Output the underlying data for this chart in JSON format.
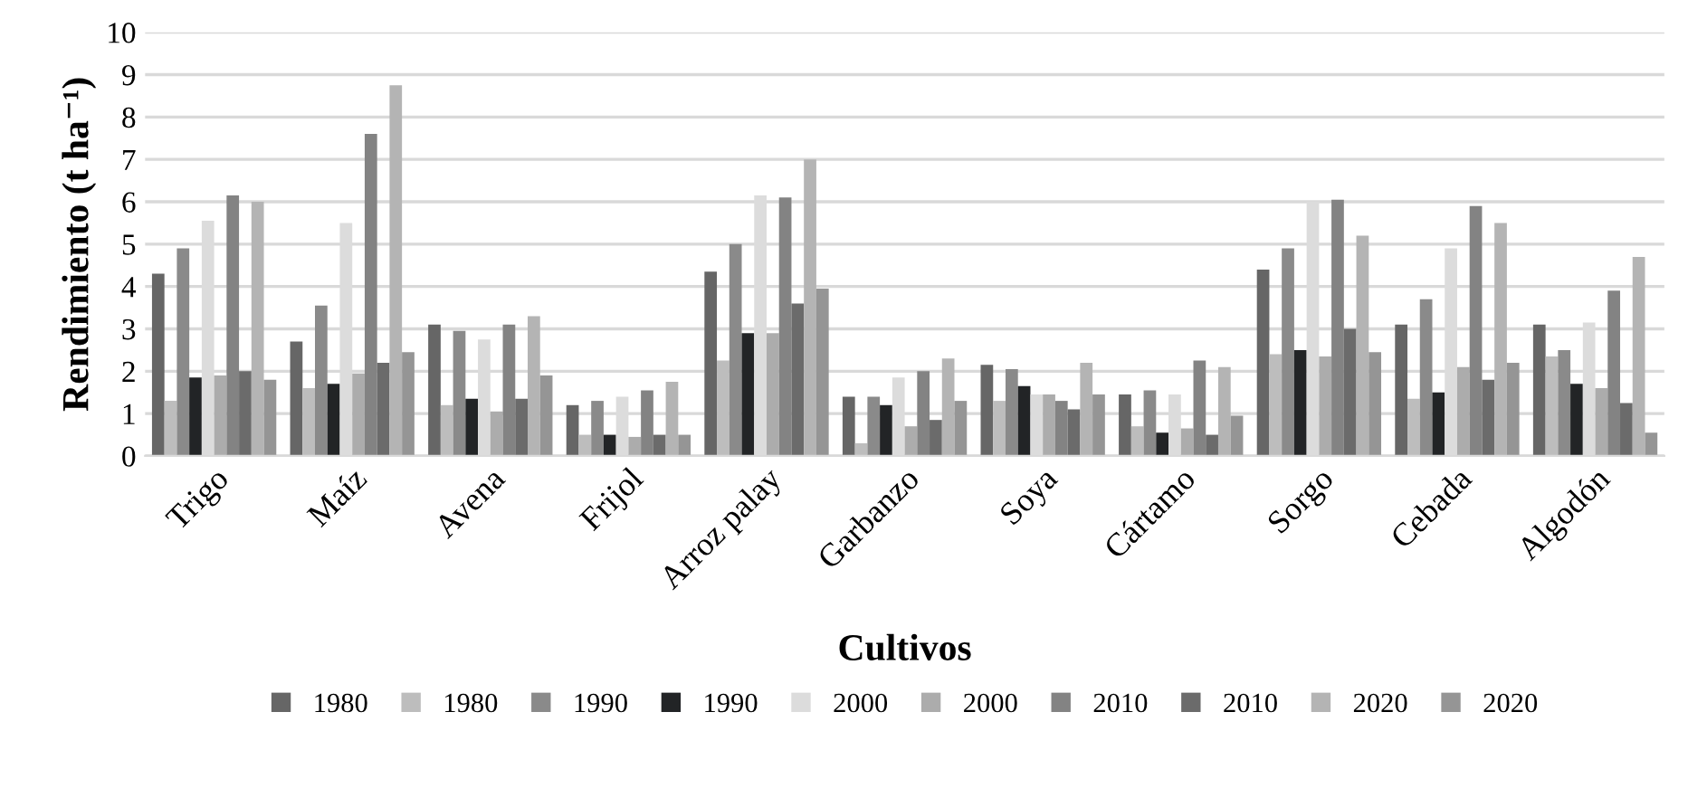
{
  "chart_data": {
    "type": "bar",
    "xlabel": "Cultivos",
    "ylabel": "Rendimiento (t ha⁻¹)",
    "categories": [
      "Trigo",
      "Maíz",
      "Avena",
      "Frijol",
      "Arroz palay",
      "Garbanzo",
      "Soya",
      "Cártamo",
      "Sorgo",
      "Cebada",
      "Algodón"
    ],
    "series": [
      {
        "name": "1980",
        "color": "#666666",
        "values": [
          4.3,
          2.7,
          3.1,
          1.2,
          4.35,
          1.4,
          2.15,
          1.45,
          4.4,
          3.1,
          3.1
        ]
      },
      {
        "name": "1980",
        "color": "#bdbdbd",
        "values": [
          1.3,
          1.6,
          1.2,
          0.5,
          2.25,
          0.3,
          1.3,
          0.7,
          2.4,
          1.35,
          2.35
        ]
      },
      {
        "name": "1990",
        "color": "#8a8a8a",
        "values": [
          4.9,
          3.55,
          2.95,
          1.3,
          5.0,
          1.4,
          2.05,
          1.55,
          4.9,
          3.7,
          2.5
        ]
      },
      {
        "name": "1990",
        "color": "#222426",
        "values": [
          1.85,
          1.7,
          1.35,
          0.5,
          2.9,
          1.2,
          1.65,
          0.55,
          2.5,
          1.5,
          1.7
        ]
      },
      {
        "name": "2000",
        "color": "#dcdcdc",
        "values": [
          5.55,
          5.5,
          2.75,
          1.4,
          6.15,
          1.85,
          1.45,
          1.45,
          6.0,
          4.9,
          3.15
        ]
      },
      {
        "name": "2000",
        "color": "#acacac",
        "values": [
          1.9,
          1.95,
          1.05,
          0.45,
          2.9,
          0.7,
          1.45,
          0.65,
          2.35,
          2.1,
          1.6
        ]
      },
      {
        "name": "2010",
        "color": "#838383",
        "values": [
          6.15,
          7.6,
          3.1,
          1.55,
          6.1,
          2.0,
          1.3,
          2.25,
          6.05,
          5.9,
          3.9
        ]
      },
      {
        "name": "2010",
        "color": "#6b6b6b",
        "values": [
          2.0,
          2.2,
          1.35,
          0.5,
          3.6,
          0.85,
          1.1,
          0.5,
          3.0,
          1.8,
          1.25
        ]
      },
      {
        "name": "2020",
        "color": "#b4b4b4",
        "values": [
          6.0,
          8.75,
          3.3,
          1.75,
          7.0,
          2.3,
          2.2,
          2.1,
          5.2,
          5.5,
          4.7
        ]
      },
      {
        "name": "2020",
        "color": "#959595",
        "values": [
          1.8,
          2.45,
          1.9,
          0.5,
          3.95,
          1.3,
          1.45,
          0.95,
          2.45,
          2.2,
          0.55
        ]
      }
    ],
    "ylim": [
      0,
      10
    ],
    "yticks": [
      0,
      1,
      2,
      3,
      4,
      5,
      6,
      7,
      8,
      9,
      10
    ],
    "grid": "y",
    "legend": "bottom"
  }
}
